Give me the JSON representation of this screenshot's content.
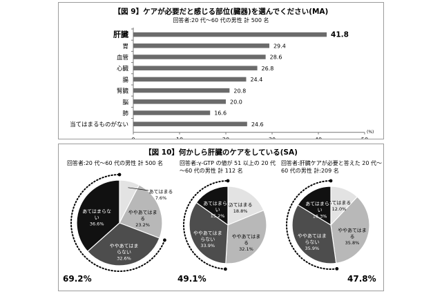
{
  "charts": {
    "bar": {
      "title": "【図 9】ケアが必要だと感じる部位(臓器)を選んでください(MA)",
      "subtitle": "回答者:20 代～60 代の男性 計 500 名"
    },
    "pies": {
      "title": "【図 10】何かしら肝臓のケアをしている(SA)"
    }
  },
  "chart_data": [
    {
      "type": "bar",
      "orientation": "horizontal",
      "title": "【図 9】ケアが必要だと感じる部位(臓器)を選んでください(MA)",
      "subtitle": "回答者:20 代～60 代の男性 計 500 名",
      "categories": [
        "肝臓",
        "胃",
        "血管",
        "心臓",
        "腸",
        "腎臓",
        "脳",
        "肺",
        "当てはまるものがない"
      ],
      "values": [
        41.8,
        29.4,
        28.6,
        26.8,
        24.4,
        20.8,
        20.0,
        16.6,
        24.6
      ],
      "value_labels": [
        "41.8",
        "29.4",
        "28.6",
        "26.8",
        "24.4",
        "20.8",
        "20.0",
        "16.6",
        "24.6"
      ],
      "xlim": [
        0,
        50
      ],
      "xticks": [
        "0",
        "10",
        "20",
        "30",
        "40",
        "50"
      ],
      "xunit": "(%)",
      "bar_color": "#6b6b6b",
      "highlight_category": "肝臓"
    },
    {
      "type": "pie",
      "caption": "回答者:20 代～60 代の男性 計 500 名",
      "slices": [
        {
          "label": "あてはまる",
          "value": 7.6,
          "value_label": "7.6%",
          "color": "#e3e3e3"
        },
        {
          "label": "ややあてはまる",
          "value": 23.2,
          "value_label": "23.2%",
          "color": "#b8b8b8"
        },
        {
          "label": "ややあてはまらない",
          "value": 32.6,
          "value_label": "32.6%",
          "color": "#4d4d4d"
        },
        {
          "label": "あてはまらない",
          "value": 36.6,
          "value_label": "36.6%",
          "color": "#111111"
        }
      ],
      "total_label": "69.2%"
    },
    {
      "type": "pie",
      "caption": "回答者:γ-GTP の値が 51 以上の 20 代～60 代の男性 計 112 名",
      "slices": [
        {
          "label": "あてはまる",
          "value": 18.8,
          "value_label": "18.8%",
          "color": "#e3e3e3"
        },
        {
          "label": "ややあてはまる",
          "value": 32.1,
          "value_label": "32.1%",
          "color": "#b8b8b8"
        },
        {
          "label": "ややあてはまらない",
          "value": 33.9,
          "value_label": "33.9%",
          "color": "#4d4d4d"
        },
        {
          "label": "あてはまらない",
          "value": 15.2,
          "value_label": "15.2%",
          "color": "#111111"
        }
      ],
      "total_label": "49.1%"
    },
    {
      "type": "pie",
      "caption": "回答者:肝臓ケアが必要と答えた 20 代～60 代の男性 計:209 名",
      "slices": [
        {
          "label": "あてはまる",
          "value": 12.0,
          "value_label": "12.0%",
          "color": "#e3e3e3"
        },
        {
          "label": "ややあてはまる",
          "value": 35.8,
          "value_label": "35.8%",
          "color": "#b8b8b8"
        },
        {
          "label": "ややあてはまらない",
          "value": 35.9,
          "value_label": "35.9%",
          "color": "#4d4d4d"
        },
        {
          "label": "あてはまらない",
          "value": 16.3,
          "value_label": "16.3%",
          "color": "#111111"
        }
      ],
      "total_label": "47.8%"
    }
  ]
}
